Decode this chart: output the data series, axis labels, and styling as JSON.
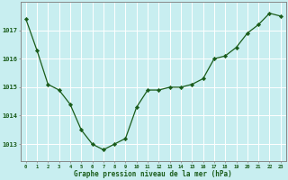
{
  "hours": [
    0,
    1,
    2,
    3,
    4,
    5,
    6,
    7,
    8,
    9,
    10,
    11,
    12,
    13,
    14,
    15,
    16,
    17,
    18,
    19,
    20,
    21,
    22,
    23
  ],
  "pressure": [
    1017.4,
    1016.3,
    1015.1,
    1014.9,
    1014.4,
    1013.5,
    1013.0,
    1012.8,
    1013.0,
    1013.2,
    1014.3,
    1014.9,
    1014.9,
    1015.0,
    1015.0,
    1015.1,
    1015.3,
    1016.0,
    1016.1,
    1016.4,
    1016.9,
    1017.2,
    1017.6,
    1017.5
  ],
  "line_color": "#1a5c1a",
  "marker": "D",
  "marker_size": 2.2,
  "bg_color": "#c8eef0",
  "grid_color": "#ffffff",
  "ylim_min": 1012.4,
  "ylim_max": 1018.0,
  "yticks": [
    1013,
    1014,
    1015,
    1016,
    1017
  ],
  "xlabel": "Graphe pression niveau de la mer (hPa)",
  "xlabel_color": "#1a5c1a",
  "tick_color": "#1a5c1a",
  "axis_color": "#888888",
  "spine_color": "#888888"
}
